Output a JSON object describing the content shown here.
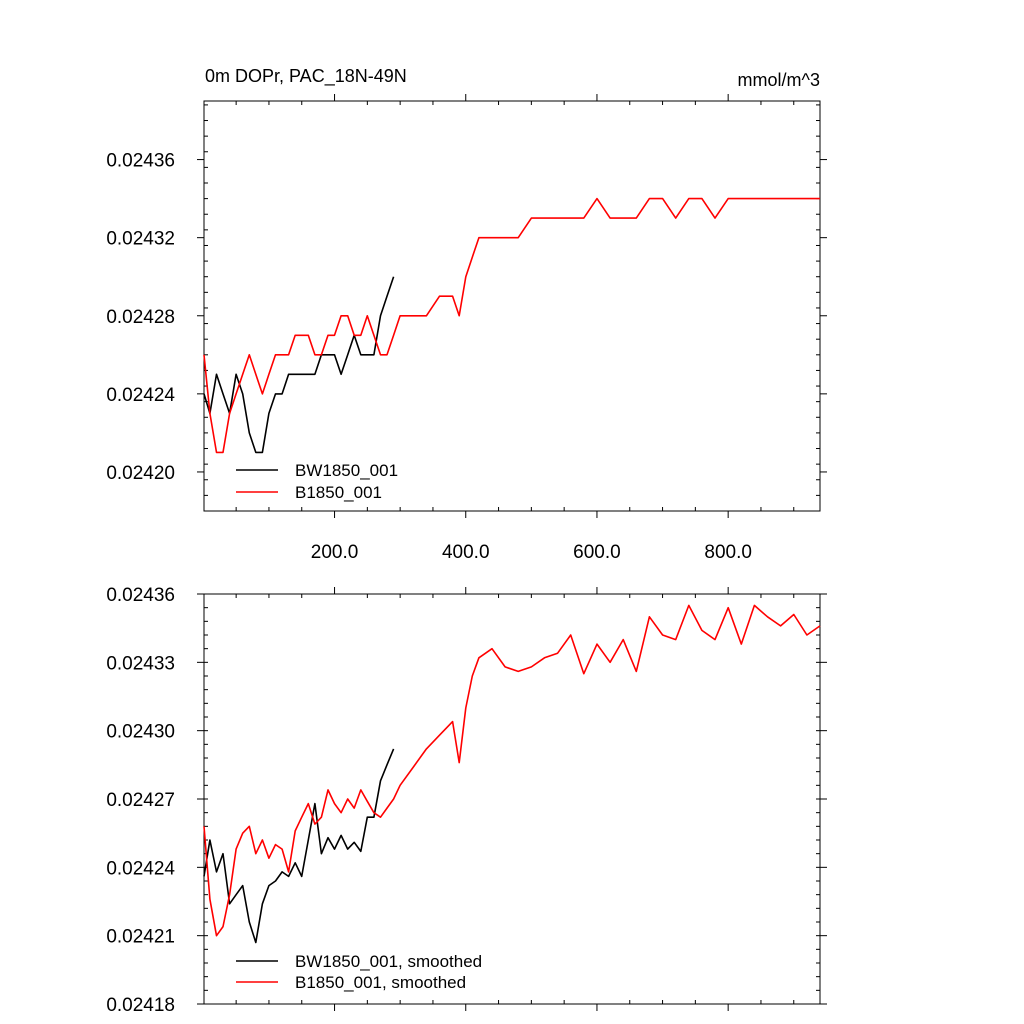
{
  "charts": [
    {
      "title_left": "0m DOPr, PAC_18N-49N",
      "title_right": "mmol/m^3",
      "x_tick_labels": [
        "200.0",
        "400.0",
        "600.0",
        "800.0"
      ],
      "y_tick_labels": [
        "0.02420",
        "0.02424",
        "0.02428",
        "0.02432",
        "0.02436"
      ],
      "legend": [
        "BW1850_001",
        "B1850_001"
      ]
    },
    {
      "y_tick_labels": [
        "0.02418",
        "0.02421",
        "0.02424",
        "0.02427",
        "0.02430",
        "0.02433",
        "0.02436"
      ],
      "legend": [
        "BW1850_001, smoothed",
        "B1850_001, smoothed"
      ]
    }
  ],
  "colors": {
    "BW1850_001": "#000000",
    "B1850_001": "#ff0000"
  },
  "chart_data": [
    {
      "type": "line",
      "title": "0m DOPr, PAC_18N-49N",
      "units": "mmol/m^3",
      "xlim": [
        1,
        940
      ],
      "ylim": [
        0.02418,
        0.02439
      ],
      "x_ticks": [
        200,
        400,
        600,
        800
      ],
      "y_ticks": [
        0.0242,
        0.02424,
        0.02428,
        0.02432,
        0.02436
      ],
      "legend_position": "bottom-left",
      "grid": false,
      "series": [
        {
          "name": "BW1850_001",
          "color": "#000000",
          "x": [
            1,
            10,
            20,
            30,
            40,
            50,
            60,
            70,
            80,
            90,
            100,
            110,
            120,
            130,
            140,
            150,
            160,
            170,
            180,
            190,
            200,
            210,
            220,
            230,
            240,
            250,
            260,
            270,
            280,
            290
          ],
          "y": [
            0.02424,
            0.02423,
            0.02425,
            0.02424,
            0.02423,
            0.02425,
            0.02424,
            0.02422,
            0.02421,
            0.02421,
            0.02423,
            0.02424,
            0.02424,
            0.02425,
            0.02425,
            0.02425,
            0.02425,
            0.02425,
            0.02426,
            0.02426,
            0.02426,
            0.02425,
            0.02426,
            0.02427,
            0.02426,
            0.02426,
            0.02426,
            0.02428,
            0.02429,
            0.0243
          ]
        },
        {
          "name": "B1850_001",
          "color": "#ff0000",
          "x": [
            1,
            10,
            20,
            30,
            40,
            50,
            60,
            70,
            80,
            90,
            100,
            110,
            120,
            130,
            140,
            150,
            160,
            170,
            180,
            190,
            200,
            210,
            220,
            230,
            240,
            250,
            260,
            270,
            280,
            290,
            300,
            320,
            340,
            360,
            380,
            390,
            400,
            410,
            420,
            440,
            460,
            480,
            500,
            520,
            540,
            560,
            580,
            600,
            620,
            640,
            660,
            680,
            700,
            720,
            740,
            760,
            780,
            800,
            820,
            840,
            860,
            880,
            900,
            920,
            940
          ],
          "y": [
            0.02426,
            0.02423,
            0.02421,
            0.02421,
            0.02423,
            0.02424,
            0.02425,
            0.02426,
            0.02425,
            0.02424,
            0.02425,
            0.02426,
            0.02426,
            0.02426,
            0.02427,
            0.02427,
            0.02427,
            0.02426,
            0.02426,
            0.02427,
            0.02427,
            0.02428,
            0.02428,
            0.02427,
            0.02427,
            0.02428,
            0.02427,
            0.02426,
            0.02426,
            0.02427,
            0.02428,
            0.02428,
            0.02428,
            0.02429,
            0.02429,
            0.02428,
            0.0243,
            0.02431,
            0.02432,
            0.02432,
            0.02432,
            0.02432,
            0.02433,
            0.02433,
            0.02433,
            0.02433,
            0.02433,
            0.02434,
            0.02433,
            0.02433,
            0.02433,
            0.02434,
            0.02434,
            0.02433,
            0.02434,
            0.02434,
            0.02433,
            0.02434,
            0.02434,
            0.02434,
            0.02434,
            0.02434,
            0.02434,
            0.02434,
            0.02434
          ]
        }
      ]
    },
    {
      "type": "line",
      "xlim": [
        1,
        940
      ],
      "ylim": [
        0.02418,
        0.02436
      ],
      "y_ticks": [
        0.02418,
        0.02421,
        0.02424,
        0.02427,
        0.0243,
        0.02433,
        0.02436
      ],
      "legend_position": "bottom-left",
      "grid": false,
      "series": [
        {
          "name": "BW1850_001, smoothed",
          "color": "#000000",
          "x": [
            1,
            10,
            20,
            30,
            40,
            50,
            60,
            70,
            80,
            90,
            100,
            110,
            120,
            130,
            140,
            150,
            160,
            170,
            180,
            190,
            200,
            210,
            220,
            230,
            240,
            250,
            260,
            270,
            280,
            290
          ],
          "y": [
            0.024236,
            0.024252,
            0.024238,
            0.024246,
            0.024224,
            0.024228,
            0.024232,
            0.024216,
            0.024207,
            0.024224,
            0.024232,
            0.024234,
            0.024238,
            0.024236,
            0.024242,
            0.024236,
            0.024252,
            0.024268,
            0.024246,
            0.024253,
            0.024248,
            0.024254,
            0.024248,
            0.024251,
            0.024247,
            0.024262,
            0.024262,
            0.024278,
            0.024285,
            0.024292
          ]
        },
        {
          "name": "B1850_001, smoothed",
          "color": "#ff0000",
          "x": [
            1,
            10,
            20,
            30,
            40,
            50,
            60,
            70,
            80,
            90,
            100,
            110,
            120,
            130,
            140,
            150,
            160,
            170,
            180,
            190,
            200,
            210,
            220,
            230,
            240,
            250,
            260,
            270,
            280,
            290,
            300,
            320,
            340,
            360,
            380,
            390,
            400,
            410,
            420,
            440,
            460,
            480,
            500,
            520,
            540,
            560,
            580,
            600,
            620,
            640,
            660,
            680,
            700,
            720,
            740,
            760,
            780,
            800,
            820,
            840,
            860,
            880,
            900,
            920,
            940
          ],
          "y": [
            0.024258,
            0.024226,
            0.02421,
            0.024214,
            0.024228,
            0.024248,
            0.024255,
            0.024258,
            0.024246,
            0.024252,
            0.024244,
            0.02425,
            0.024248,
            0.024238,
            0.024256,
            0.024262,
            0.024268,
            0.024259,
            0.024262,
            0.024274,
            0.024268,
            0.024264,
            0.02427,
            0.024266,
            0.024274,
            0.024269,
            0.024264,
            0.024262,
            0.024266,
            0.02427,
            0.024276,
            0.024284,
            0.024292,
            0.024298,
            0.024304,
            0.024286,
            0.02431,
            0.024324,
            0.024332,
            0.024336,
            0.024328,
            0.024326,
            0.024328,
            0.024332,
            0.024334,
            0.024342,
            0.024325,
            0.024338,
            0.02433,
            0.02434,
            0.024326,
            0.02435,
            0.024342,
            0.02434,
            0.024355,
            0.024344,
            0.02434,
            0.024354,
            0.024338,
            0.024355,
            0.02435,
            0.024346,
            0.024351,
            0.024342,
            0.024346
          ]
        }
      ]
    }
  ]
}
